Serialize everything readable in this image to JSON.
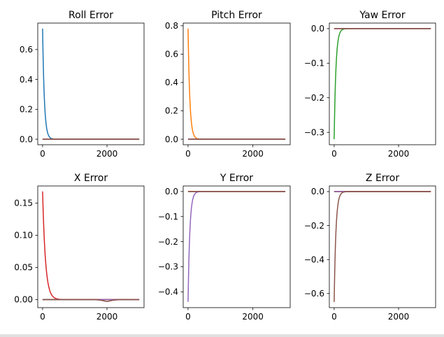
{
  "chart_data": [
    {
      "type": "line",
      "title": "Roll Error",
      "xlabel": "",
      "ylabel": "",
      "xlim": [
        -150,
        3150
      ],
      "ylim": [
        -0.037,
        0.777
      ],
      "xticks": [
        0,
        2000
      ],
      "xtick_labels": [
        "0",
        "2000"
      ],
      "yticks": [
        0.0,
        0.2,
        0.4,
        0.6
      ],
      "ytick_labels": [
        "0.0",
        "0.2",
        "0.4",
        "0.6"
      ],
      "series": [
        {
          "color": "#1f77b4",
          "decay": {
            "start": 0.74,
            "tau": 55
          }
        },
        {
          "color": "#ff7f0e",
          "x": [
            0,
            3000
          ],
          "y": [
            0,
            0
          ]
        },
        {
          "color": "#2ca02c",
          "x": [
            0,
            3000
          ],
          "y": [
            0,
            0
          ]
        },
        {
          "color": "#d62728",
          "x": [
            0,
            3000
          ],
          "y": [
            0,
            0
          ]
        },
        {
          "color": "#9467bd",
          "x": [
            0,
            3000
          ],
          "y": [
            0,
            0
          ]
        },
        {
          "color": "#8c564b",
          "x": [
            0,
            3000
          ],
          "y": [
            0,
            0
          ]
        }
      ],
      "grid": false
    },
    {
      "type": "line",
      "title": "Pitch Error",
      "xlabel": "",
      "ylabel": "",
      "xlim": [
        -150,
        3150
      ],
      "ylim": [
        -0.039,
        0.819
      ],
      "xticks": [
        0,
        2000
      ],
      "xtick_labels": [
        "0",
        "2000"
      ],
      "yticks": [
        0.0,
        0.2,
        0.4,
        0.6,
        0.8
      ],
      "ytick_labels": [
        "0.0",
        "0.2",
        "0.4",
        "0.6",
        "0.8"
      ],
      "series": [
        {
          "color": "#1f77b4",
          "x": [
            0,
            3000
          ],
          "y": [
            0,
            0
          ]
        },
        {
          "color": "#ff7f0e",
          "decay": {
            "start": 0.78,
            "tau": 55
          }
        },
        {
          "color": "#2ca02c",
          "x": [
            0,
            3000
          ],
          "y": [
            0,
            0
          ]
        },
        {
          "color": "#d62728",
          "x": [
            0,
            3000
          ],
          "y": [
            0,
            0
          ]
        },
        {
          "color": "#9467bd",
          "x": [
            0,
            3000
          ],
          "y": [
            0,
            0
          ]
        },
        {
          "color": "#8c564b",
          "x": [
            0,
            3000
          ],
          "y": [
            0,
            0
          ]
        }
      ],
      "grid": false
    },
    {
      "type": "line",
      "title": "Yaw Error",
      "xlabel": "",
      "ylabel": "",
      "xlim": [
        -150,
        3150
      ],
      "ylim": [
        -0.336,
        0.016
      ],
      "xticks": [
        0,
        2000
      ],
      "xtick_labels": [
        "0",
        "2000"
      ],
      "yticks": [
        0.0,
        -0.1,
        -0.2,
        -0.3
      ],
      "ytick_labels": [
        "0.0",
        "−0.1",
        "−0.2",
        "−0.3"
      ],
      "series": [
        {
          "color": "#1f77b4",
          "x": [
            0,
            3000
          ],
          "y": [
            0,
            0
          ]
        },
        {
          "color": "#ff7f0e",
          "x": [
            0,
            3000
          ],
          "y": [
            0,
            0
          ]
        },
        {
          "color": "#2ca02c",
          "decay": {
            "start": -0.32,
            "tau": 55
          }
        },
        {
          "color": "#d62728",
          "x": [
            0,
            3000
          ],
          "y": [
            0,
            0
          ]
        },
        {
          "color": "#9467bd",
          "x": [
            0,
            3000
          ],
          "y": [
            0,
            0
          ]
        },
        {
          "color": "#8c564b",
          "x": [
            0,
            3000
          ],
          "y": [
            0,
            0
          ]
        }
      ],
      "grid": false
    },
    {
      "type": "line",
      "title": "X Error",
      "xlabel": "",
      "ylabel": "",
      "xlim": [
        -150,
        3150
      ],
      "ylim": [
        -0.0125,
        0.1765
      ],
      "xticks": [
        0,
        2000
      ],
      "xtick_labels": [
        "0",
        "2000"
      ],
      "yticks": [
        0.0,
        0.05,
        0.1,
        0.15
      ],
      "ytick_labels": [
        "0.00",
        "0.05",
        "0.10",
        "0.15"
      ],
      "series": [
        {
          "color": "#1f77b4",
          "x": [
            0,
            3000
          ],
          "y": [
            0,
            0
          ]
        },
        {
          "color": "#ff7f0e",
          "x": [
            0,
            3000
          ],
          "y": [
            0,
            0
          ]
        },
        {
          "color": "#2ca02c",
          "x": [
            0,
            3000
          ],
          "y": [
            0,
            0
          ]
        },
        {
          "color": "#d62728",
          "decay": {
            "start": 0.168,
            "tau": 90
          }
        },
        {
          "color": "#9467bd",
          "x": [
            0,
            3000
          ],
          "y": [
            0,
            0
          ]
        },
        {
          "color": "#8c564b",
          "x": [
            0,
            1600,
            1800,
            2000,
            2200,
            2400,
            3000
          ],
          "y": [
            0,
            0,
            -0.001,
            -0.003,
            -0.001,
            0,
            0
          ]
        }
      ],
      "grid": false
    },
    {
      "type": "line",
      "title": "Y Error",
      "xlabel": "",
      "ylabel": "",
      "xlim": [
        -150,
        3150
      ],
      "ylim": [
        -0.463,
        0.022
      ],
      "xticks": [
        0,
        2000
      ],
      "xtick_labels": [
        "0",
        "2000"
      ],
      "yticks": [
        0.0,
        -0.1,
        -0.2,
        -0.3,
        -0.4
      ],
      "ytick_labels": [
        "0.0",
        "−0.1",
        "−0.2",
        "−0.3",
        "−0.4"
      ],
      "series": [
        {
          "color": "#1f77b4",
          "x": [
            0,
            3000
          ],
          "y": [
            0,
            0
          ]
        },
        {
          "color": "#ff7f0e",
          "x": [
            0,
            3000
          ],
          "y": [
            0,
            0
          ]
        },
        {
          "color": "#2ca02c",
          "x": [
            0,
            3000
          ],
          "y": [
            0,
            0
          ]
        },
        {
          "color": "#d62728",
          "x": [
            0,
            3000
          ],
          "y": [
            0,
            0
          ]
        },
        {
          "color": "#9467bd",
          "decay": {
            "start": -0.44,
            "tau": 55
          }
        },
        {
          "color": "#8c564b",
          "x": [
            0,
            3000
          ],
          "y": [
            0,
            0
          ]
        }
      ],
      "grid": false
    },
    {
      "type": "line",
      "title": "Z Error",
      "xlabel": "",
      "ylabel": "",
      "xlim": [
        -150,
        3150
      ],
      "ylim": [
        -0.683,
        0.033
      ],
      "xticks": [
        0,
        2000
      ],
      "xtick_labels": [
        "0",
        "2000"
      ],
      "yticks": [
        0.0,
        -0.2,
        -0.4,
        -0.6
      ],
      "ytick_labels": [
        "0.0",
        "−0.2",
        "−0.4",
        "−0.6"
      ],
      "series": [
        {
          "color": "#1f77b4",
          "x": [
            0,
            3000
          ],
          "y": [
            0,
            0
          ]
        },
        {
          "color": "#ff7f0e",
          "x": [
            0,
            3000
          ],
          "y": [
            0,
            0
          ]
        },
        {
          "color": "#2ca02c",
          "x": [
            0,
            3000
          ],
          "y": [
            0,
            0
          ]
        },
        {
          "color": "#d62728",
          "x": [
            0,
            3000
          ],
          "y": [
            0,
            0
          ]
        },
        {
          "color": "#9467bd",
          "x": [
            0,
            3000
          ],
          "y": [
            0,
            0
          ]
        },
        {
          "color": "#8c564b",
          "decay": {
            "start": -0.65,
            "tau": 55
          }
        }
      ],
      "grid": false
    }
  ]
}
